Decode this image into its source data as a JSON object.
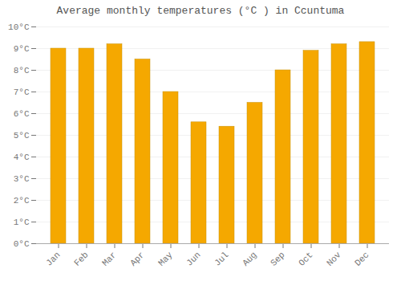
{
  "chart_data": {
    "type": "bar",
    "title": "Average monthly temperatures (°C ) in Ccuntuma",
    "categories": [
      "Jan",
      "Feb",
      "Mar",
      "Apr",
      "May",
      "Jun",
      "Jul",
      "Aug",
      "Sep",
      "Oct",
      "Nov",
      "Dec"
    ],
    "values": [
      9.0,
      9.0,
      9.2,
      8.5,
      7.0,
      5.6,
      5.4,
      6.5,
      8.0,
      8.9,
      9.2,
      9.3
    ],
    "color": "#F5A800",
    "ylim": [
      0,
      10
    ],
    "yticks": [
      {
        "value": 0,
        "label": "0°C"
      },
      {
        "value": 1,
        "label": "1°C"
      },
      {
        "value": 2,
        "label": "2°C"
      },
      {
        "value": 3,
        "label": "3°C"
      },
      {
        "value": 4,
        "label": "4°C"
      },
      {
        "value": 5,
        "label": "5°C"
      },
      {
        "value": 6,
        "label": "6°C"
      },
      {
        "value": 7,
        "label": "7°C"
      },
      {
        "value": 8,
        "label": "8°C"
      },
      {
        "value": 9,
        "label": "9°C"
      },
      {
        "value": 10,
        "label": "10°C"
      }
    ],
    "grid": true
  }
}
